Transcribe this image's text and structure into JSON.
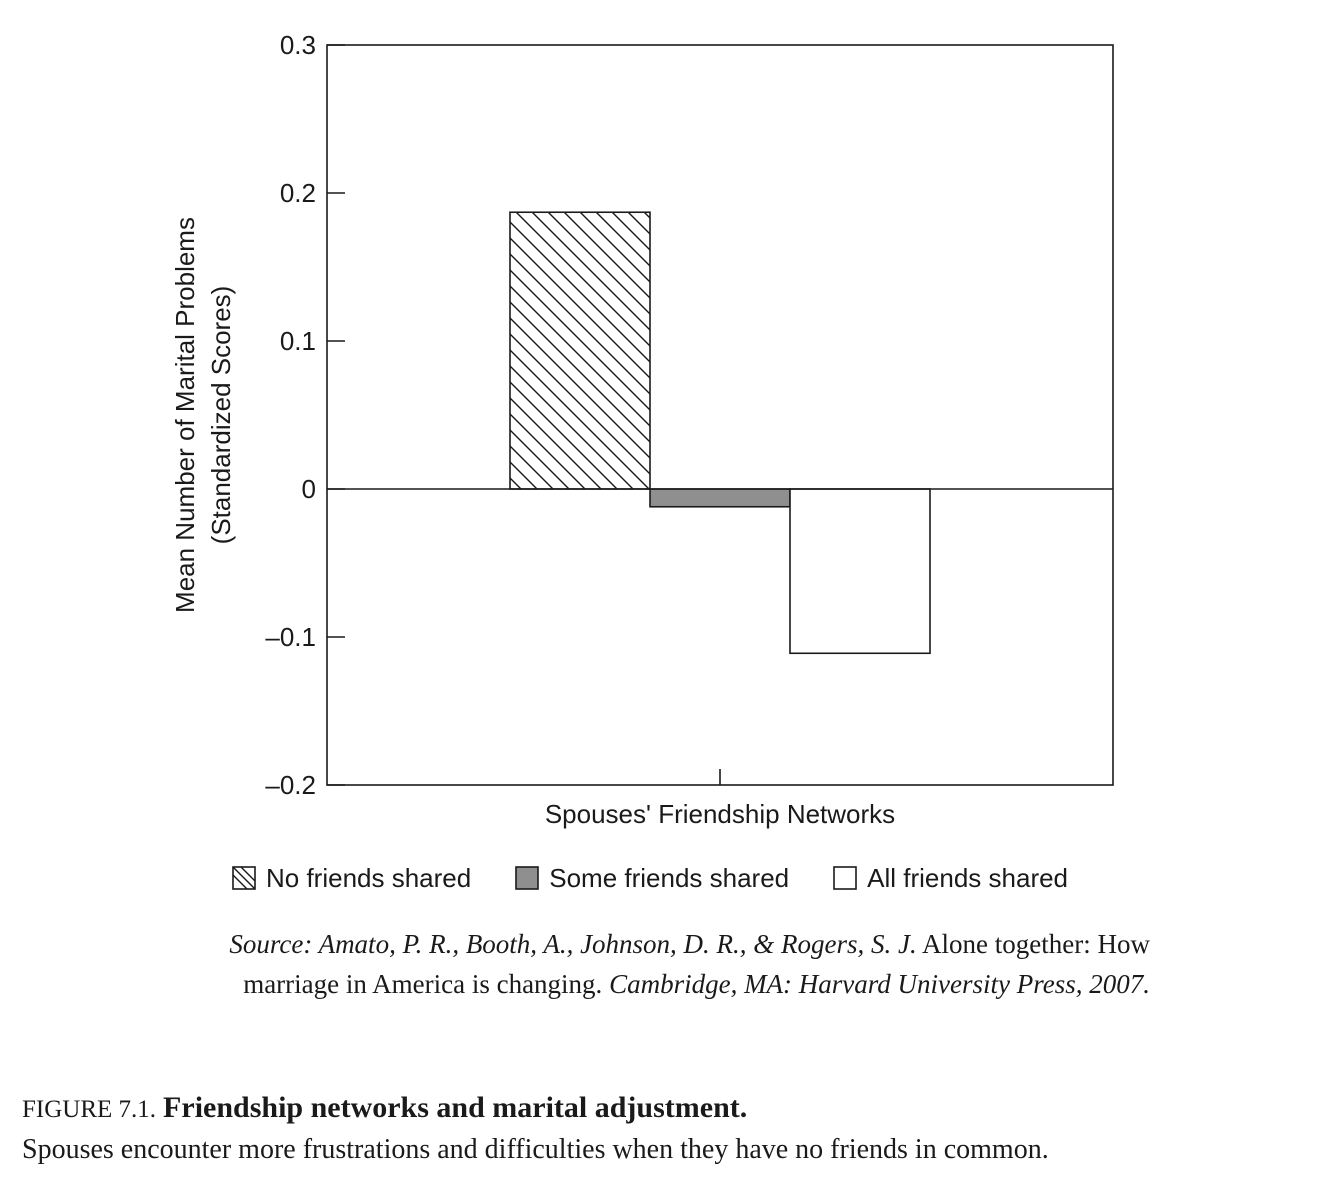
{
  "chart_data": {
    "type": "bar",
    "xlabel": "Spouses' Friendship Networks",
    "ylabel_lines": [
      "Mean Number of Marital Problems",
      "(Standardized Scores)"
    ],
    "ylim": [
      -0.2,
      0.3
    ],
    "yticks": [
      {
        "value": 0.3,
        "label": "0.3"
      },
      {
        "value": 0.2,
        "label": "0.2"
      },
      {
        "value": 0.1,
        "label": "0.1"
      },
      {
        "value": 0,
        "label": "0"
      },
      {
        "value": -0.1,
        "label": "–0.1"
      },
      {
        "value": -0.2,
        "label": "–0.2"
      }
    ],
    "grid": false,
    "legend_position": "bottom",
    "series": [
      {
        "name": "No friends shared",
        "value": 0.187,
        "fill": "hatched"
      },
      {
        "name": "Some friends shared",
        "value": -0.012,
        "fill": "#8f8f8f"
      },
      {
        "name": "All friends shared",
        "value": -0.111,
        "fill": "#ffffff"
      }
    ]
  },
  "source": {
    "part1_italic": "Source: Amato, P. R., Booth, A., Johnson, D. R., & Rogers, S. J.",
    "part2": " Alone together: How marriage in America is changing. ",
    "part3_italic": "Cambridge, MA: Harvard University Press, 2007."
  },
  "caption": {
    "number": "FIGURE 7.1.",
    "title": "Friendship networks and marital adjustment.",
    "text": "Spouses encounter more frustrations and difficulties when they have no friends in common."
  },
  "colors": {
    "ink": "#1a1a1a",
    "some_fill": "#8f8f8f"
  }
}
